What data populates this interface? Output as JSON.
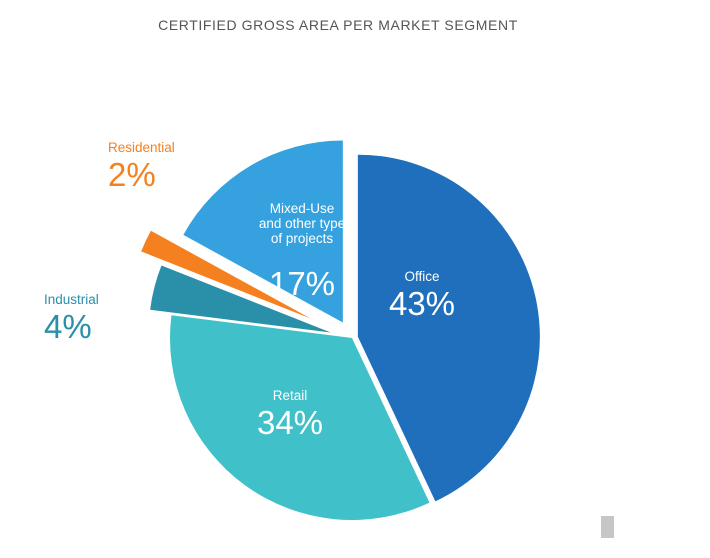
{
  "chart_data": {
    "type": "pie",
    "title": "CERTIFIED GROSS AREA PER MARKET SEGMENT",
    "slices": [
      {
        "name": "Office",
        "value": 43,
        "label": "43%",
        "color": "#1f6fbc"
      },
      {
        "name": "Retail",
        "value": 34,
        "label": "34%",
        "color": "#40c0c8"
      },
      {
        "name": "Industrial",
        "value": 4,
        "label": "4%",
        "color": "#2a8fa9"
      },
      {
        "name": "Residential",
        "value": 2,
        "label": "2%",
        "color": "#f5801f"
      },
      {
        "name": "Mixed-Use\nand other type\nof projects",
        "value": 17,
        "label": "17%",
        "color": "#35a2df"
      }
    ]
  }
}
